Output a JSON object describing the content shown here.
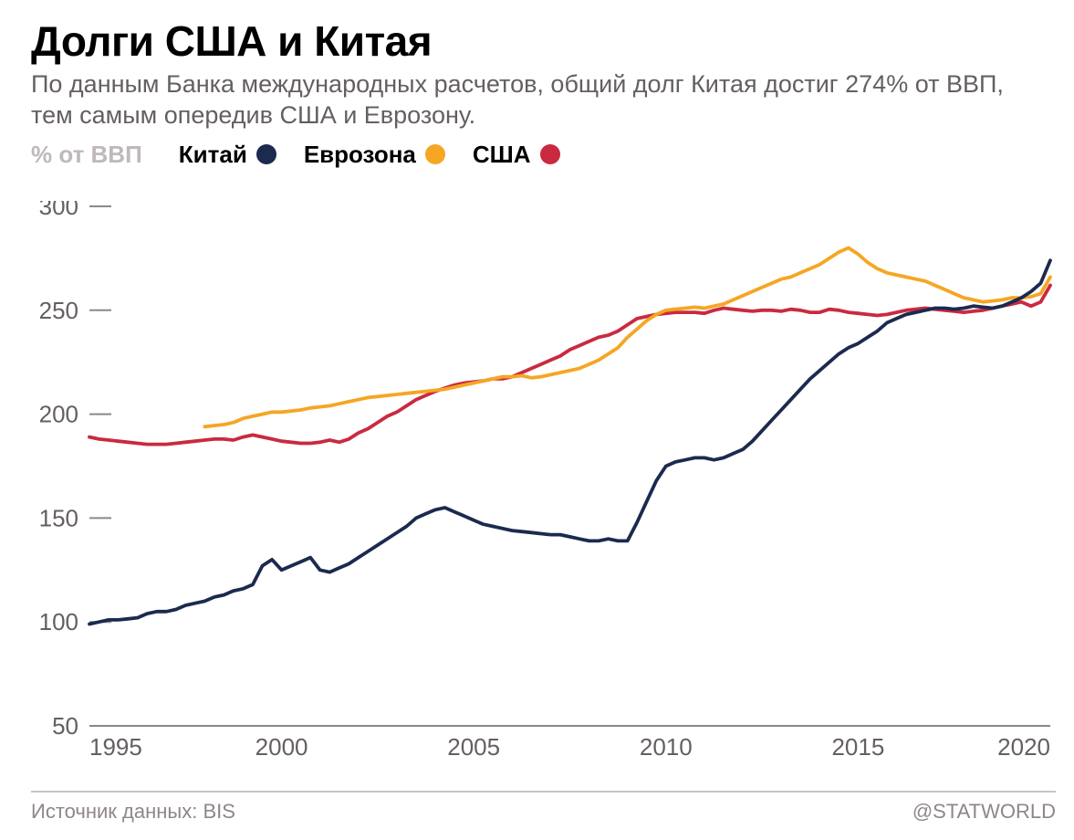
{
  "title": "Долги США и Китая",
  "subtitle": "По данным Банка международных расчетов, общий долг Китая достиг 274% от ВВП, тем самым опередив США и Еврозону.",
  "y_axis_label": "% от ВВП",
  "source_label": "Источник данных: BIS",
  "attribution": "@STATWORLD",
  "chart": {
    "type": "line",
    "background_color": "#ffffff",
    "grid_color": "#bfb9b9",
    "axis_font_size": 26,
    "axis_color": "#655f5f",
    "tick_color": "#8f8787",
    "line_width": 3.8,
    "xlim": [
      1995,
      2020
    ],
    "ylim": [
      50,
      300
    ],
    "xticks": [
      1995,
      2000,
      2005,
      2010,
      2015,
      2020
    ],
    "yticks": [
      50,
      100,
      150,
      200,
      250,
      300
    ],
    "series": {
      "china": {
        "label": "Китай",
        "color": "#1b2a4e",
        "data": [
          [
            1995.0,
            99
          ],
          [
            1995.25,
            100
          ],
          [
            1995.5,
            101
          ],
          [
            1995.75,
            101
          ],
          [
            1996.0,
            101.5
          ],
          [
            1996.25,
            102
          ],
          [
            1996.5,
            104
          ],
          [
            1996.75,
            105
          ],
          [
            1997.0,
            105
          ],
          [
            1997.25,
            106
          ],
          [
            1997.5,
            108
          ],
          [
            1997.75,
            109
          ],
          [
            1998.0,
            110
          ],
          [
            1998.25,
            112
          ],
          [
            1998.5,
            113
          ],
          [
            1998.75,
            115
          ],
          [
            1999.0,
            116
          ],
          [
            1999.25,
            118
          ],
          [
            1999.5,
            127
          ],
          [
            1999.75,
            130
          ],
          [
            2000.0,
            125
          ],
          [
            2000.25,
            127
          ],
          [
            2000.5,
            129
          ],
          [
            2000.75,
            131
          ],
          [
            2001.0,
            125
          ],
          [
            2001.25,
            124
          ],
          [
            2001.5,
            126
          ],
          [
            2001.75,
            128
          ],
          [
            2002.0,
            131
          ],
          [
            2002.25,
            134
          ],
          [
            2002.5,
            137
          ],
          [
            2002.75,
            140
          ],
          [
            2003.0,
            143
          ],
          [
            2003.25,
            146
          ],
          [
            2003.5,
            150
          ],
          [
            2003.75,
            152
          ],
          [
            2004.0,
            154
          ],
          [
            2004.25,
            155
          ],
          [
            2004.5,
            153
          ],
          [
            2004.75,
            151
          ],
          [
            2005.0,
            149
          ],
          [
            2005.25,
            147
          ],
          [
            2005.5,
            146
          ],
          [
            2005.75,
            145
          ],
          [
            2006.0,
            144
          ],
          [
            2006.25,
            143.5
          ],
          [
            2006.5,
            143
          ],
          [
            2006.75,
            142.5
          ],
          [
            2007.0,
            142
          ],
          [
            2007.25,
            142
          ],
          [
            2007.5,
            141
          ],
          [
            2007.75,
            140
          ],
          [
            2008.0,
            139
          ],
          [
            2008.25,
            139
          ],
          [
            2008.5,
            140
          ],
          [
            2008.75,
            139
          ],
          [
            2009.0,
            139
          ],
          [
            2009.25,
            148
          ],
          [
            2009.5,
            158
          ],
          [
            2009.75,
            168
          ],
          [
            2010.0,
            175
          ],
          [
            2010.25,
            177
          ],
          [
            2010.5,
            178
          ],
          [
            2010.75,
            179
          ],
          [
            2011.0,
            179
          ],
          [
            2011.25,
            178
          ],
          [
            2011.5,
            179
          ],
          [
            2011.75,
            181
          ],
          [
            2012.0,
            183
          ],
          [
            2012.25,
            187
          ],
          [
            2012.5,
            192
          ],
          [
            2012.75,
            197
          ],
          [
            2013.0,
            202
          ],
          [
            2013.25,
            207
          ],
          [
            2013.5,
            212
          ],
          [
            2013.75,
            217
          ],
          [
            2014.0,
            221
          ],
          [
            2014.25,
            225
          ],
          [
            2014.5,
            229
          ],
          [
            2014.75,
            232
          ],
          [
            2015.0,
            234
          ],
          [
            2015.25,
            237
          ],
          [
            2015.5,
            240
          ],
          [
            2015.75,
            244
          ],
          [
            2016.0,
            246
          ],
          [
            2016.25,
            248
          ],
          [
            2016.5,
            249
          ],
          [
            2016.75,
            250
          ],
          [
            2017.0,
            251
          ],
          [
            2017.25,
            251
          ],
          [
            2017.5,
            250.5
          ],
          [
            2017.75,
            251
          ],
          [
            2018.0,
            252
          ],
          [
            2018.25,
            251.5
          ],
          [
            2018.5,
            251
          ],
          [
            2018.75,
            252
          ],
          [
            2019.0,
            254
          ],
          [
            2019.25,
            256
          ],
          [
            2019.5,
            259
          ],
          [
            2019.75,
            263
          ],
          [
            2020.0,
            274
          ]
        ]
      },
      "eurozone": {
        "label": "Еврозона",
        "color": "#f5a623",
        "data": [
          [
            1998.0,
            194
          ],
          [
            1998.25,
            194.5
          ],
          [
            1998.5,
            195
          ],
          [
            1998.75,
            196
          ],
          [
            1999.0,
            198
          ],
          [
            1999.25,
            199
          ],
          [
            1999.5,
            200
          ],
          [
            1999.75,
            201
          ],
          [
            2000.0,
            201
          ],
          [
            2000.25,
            201.5
          ],
          [
            2000.5,
            202
          ],
          [
            2000.75,
            203
          ],
          [
            2001.0,
            203.5
          ],
          [
            2001.25,
            204
          ],
          [
            2001.5,
            205
          ],
          [
            2001.75,
            206
          ],
          [
            2002.0,
            207
          ],
          [
            2002.25,
            208
          ],
          [
            2002.5,
            208.5
          ],
          [
            2002.75,
            209
          ],
          [
            2003.0,
            209.5
          ],
          [
            2003.25,
            210
          ],
          [
            2003.5,
            210.5
          ],
          [
            2003.75,
            211
          ],
          [
            2004.0,
            211.5
          ],
          [
            2004.25,
            212
          ],
          [
            2004.5,
            213
          ],
          [
            2004.75,
            214
          ],
          [
            2005.0,
            215
          ],
          [
            2005.25,
            216
          ],
          [
            2005.5,
            217
          ],
          [
            2005.75,
            218
          ],
          [
            2006.0,
            218
          ],
          [
            2006.25,
            218.5
          ],
          [
            2006.5,
            217.5
          ],
          [
            2006.75,
            218
          ],
          [
            2007.0,
            219
          ],
          [
            2007.25,
            220
          ],
          [
            2007.5,
            221
          ],
          [
            2007.75,
            222
          ],
          [
            2008.0,
            224
          ],
          [
            2008.25,
            226
          ],
          [
            2008.5,
            229
          ],
          [
            2008.75,
            232
          ],
          [
            2009.0,
            237
          ],
          [
            2009.25,
            241
          ],
          [
            2009.5,
            245
          ],
          [
            2009.75,
            248
          ],
          [
            2010.0,
            250
          ],
          [
            2010.25,
            250.5
          ],
          [
            2010.5,
            251
          ],
          [
            2010.75,
            251.5
          ],
          [
            2011.0,
            251
          ],
          [
            2011.25,
            252
          ],
          [
            2011.5,
            253
          ],
          [
            2011.75,
            255
          ],
          [
            2012.0,
            257
          ],
          [
            2012.25,
            259
          ],
          [
            2012.5,
            261
          ],
          [
            2012.75,
            263
          ],
          [
            2013.0,
            265
          ],
          [
            2013.25,
            266
          ],
          [
            2013.5,
            268
          ],
          [
            2013.75,
            270
          ],
          [
            2014.0,
            272
          ],
          [
            2014.25,
            275
          ],
          [
            2014.5,
            278
          ],
          [
            2014.75,
            280
          ],
          [
            2015.0,
            277
          ],
          [
            2015.25,
            273
          ],
          [
            2015.5,
            270
          ],
          [
            2015.75,
            268
          ],
          [
            2016.0,
            267
          ],
          [
            2016.25,
            266
          ],
          [
            2016.5,
            265
          ],
          [
            2016.75,
            264
          ],
          [
            2017.0,
            262
          ],
          [
            2017.25,
            260
          ],
          [
            2017.5,
            258
          ],
          [
            2017.75,
            256
          ],
          [
            2018.0,
            255
          ],
          [
            2018.25,
            254
          ],
          [
            2018.5,
            254.5
          ],
          [
            2018.75,
            255
          ],
          [
            2019.0,
            256
          ],
          [
            2019.25,
            256
          ],
          [
            2019.5,
            256.5
          ],
          [
            2019.75,
            258
          ],
          [
            2020.0,
            266
          ]
        ]
      },
      "usa": {
        "label": "США",
        "color": "#c92a3f",
        "data": [
          [
            1995.0,
            189
          ],
          [
            1995.25,
            188
          ],
          [
            1995.5,
            187.5
          ],
          [
            1995.75,
            187
          ],
          [
            1996.0,
            186.5
          ],
          [
            1996.25,
            186
          ],
          [
            1996.5,
            185.5
          ],
          [
            1996.75,
            185.5
          ],
          [
            1997.0,
            185.5
          ],
          [
            1997.25,
            186
          ],
          [
            1997.5,
            186.5
          ],
          [
            1997.75,
            187
          ],
          [
            1998.0,
            187.5
          ],
          [
            1998.25,
            188
          ],
          [
            1998.5,
            188
          ],
          [
            1998.75,
            187.5
          ],
          [
            1999.0,
            189
          ],
          [
            1999.25,
            190
          ],
          [
            1999.5,
            189
          ],
          [
            1999.75,
            188
          ],
          [
            2000.0,
            187
          ],
          [
            2000.25,
            186.5
          ],
          [
            2000.5,
            186
          ],
          [
            2000.75,
            186
          ],
          [
            2001.0,
            186.5
          ],
          [
            2001.25,
            187.5
          ],
          [
            2001.5,
            186.5
          ],
          [
            2001.75,
            188
          ],
          [
            2002.0,
            191
          ],
          [
            2002.25,
            193
          ],
          [
            2002.5,
            196
          ],
          [
            2002.75,
            199
          ],
          [
            2003.0,
            201
          ],
          [
            2003.25,
            204
          ],
          [
            2003.5,
            207
          ],
          [
            2003.75,
            209
          ],
          [
            2004.0,
            211
          ],
          [
            2004.25,
            212.5
          ],
          [
            2004.5,
            214
          ],
          [
            2004.75,
            215
          ],
          [
            2005.0,
            215.5
          ],
          [
            2005.25,
            216
          ],
          [
            2005.5,
            217
          ],
          [
            2005.75,
            217
          ],
          [
            2006.0,
            218
          ],
          [
            2006.25,
            220
          ],
          [
            2006.5,
            222
          ],
          [
            2006.75,
            224
          ],
          [
            2007.0,
            226
          ],
          [
            2007.25,
            228
          ],
          [
            2007.5,
            231
          ],
          [
            2007.75,
            233
          ],
          [
            2008.0,
            235
          ],
          [
            2008.25,
            237
          ],
          [
            2008.5,
            238
          ],
          [
            2008.75,
            240
          ],
          [
            2009.0,
            243
          ],
          [
            2009.25,
            246
          ],
          [
            2009.5,
            247
          ],
          [
            2009.75,
            248
          ],
          [
            2010.0,
            248.5
          ],
          [
            2010.25,
            249
          ],
          [
            2010.5,
            249
          ],
          [
            2010.75,
            249
          ],
          [
            2011.0,
            248.5
          ],
          [
            2011.25,
            250
          ],
          [
            2011.5,
            251
          ],
          [
            2011.75,
            250.5
          ],
          [
            2012.0,
            250
          ],
          [
            2012.25,
            249.5
          ],
          [
            2012.5,
            250
          ],
          [
            2012.75,
            250
          ],
          [
            2013.0,
            249.5
          ],
          [
            2013.25,
            250.5
          ],
          [
            2013.5,
            250
          ],
          [
            2013.75,
            249
          ],
          [
            2014.0,
            249
          ],
          [
            2014.25,
            250.5
          ],
          [
            2014.5,
            250
          ],
          [
            2014.75,
            249
          ],
          [
            2015.0,
            248.5
          ],
          [
            2015.25,
            248
          ],
          [
            2015.5,
            247.5
          ],
          [
            2015.75,
            248
          ],
          [
            2016.0,
            249
          ],
          [
            2016.25,
            250
          ],
          [
            2016.5,
            250.5
          ],
          [
            2016.75,
            251
          ],
          [
            2017.0,
            250.5
          ],
          [
            2017.25,
            250
          ],
          [
            2017.5,
            249.5
          ],
          [
            2017.75,
            249
          ],
          [
            2018.0,
            249.5
          ],
          [
            2018.25,
            250
          ],
          [
            2018.5,
            251
          ],
          [
            2018.75,
            252
          ],
          [
            2019.0,
            253
          ],
          [
            2019.25,
            254
          ],
          [
            2019.5,
            252
          ],
          [
            2019.75,
            254
          ],
          [
            2020.0,
            262
          ]
        ]
      }
    }
  }
}
